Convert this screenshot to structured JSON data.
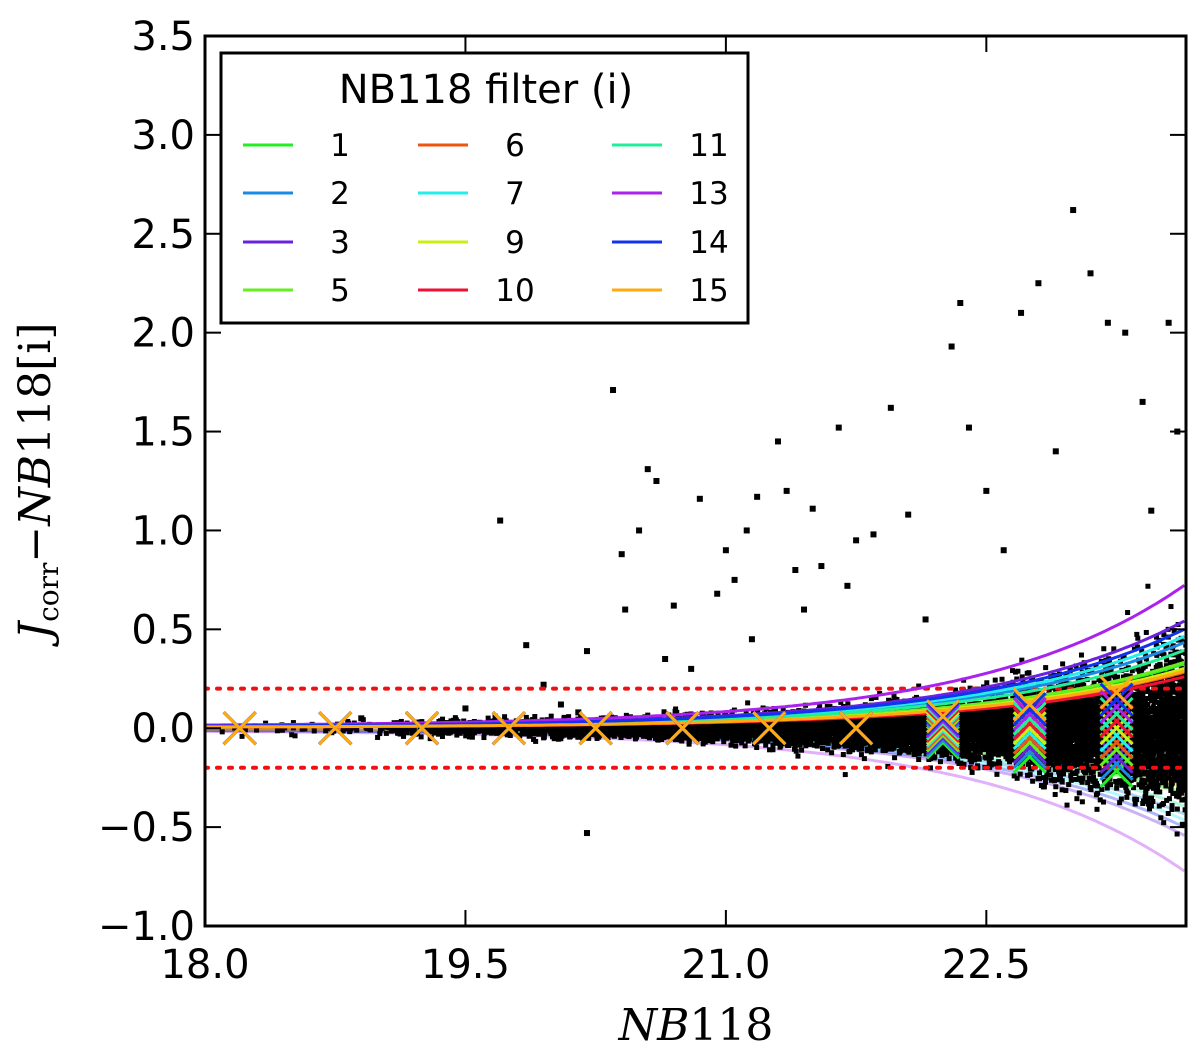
{
  "chart_data": {
    "type": "scatter",
    "xlabel": "NB118",
    "ylabel": "J_corr − NB118[i]",
    "ylabel_parts": {
      "J": "J",
      "sub": "corr",
      "dash": "−",
      "nb": "NB",
      "num": "118[i]"
    },
    "xlabel_parts": {
      "nb": "NB",
      "num": "118"
    },
    "xlim": [
      18.0,
      23.65
    ],
    "ylim": [
      -1.0,
      3.5
    ],
    "xticks": [
      18.0,
      19.5,
      21.0,
      22.5
    ],
    "xtick_labels": [
      "18.0",
      "19.5",
      "21.0",
      "22.5"
    ],
    "yticks": [
      -1.0,
      -0.5,
      0.0,
      0.5,
      1.0,
      1.5,
      2.0,
      2.5,
      3.0,
      3.5
    ],
    "ytick_labels": [
      "−1.0",
      "−0.5",
      "0.0",
      "0.5",
      "1.0",
      "1.5",
      "2.0",
      "2.5",
      "3.0",
      "3.5"
    ],
    "threshold_lines": [
      0.2,
      -0.2
    ],
    "threshold_color": "#ee1111",
    "legend": {
      "title": "NB118 filter (i)",
      "position": "top-left",
      "entries": [
        {
          "label": "1",
          "color": "#22ee22"
        },
        {
          "label": "2",
          "color": "#1a8ae6"
        },
        {
          "label": "3",
          "color": "#6a22e0"
        },
        {
          "label": "5",
          "color": "#66ee22"
        },
        {
          "label": "6",
          "color": "#ee5511"
        },
        {
          "label": "7",
          "color": "#22eeee"
        },
        {
          "label": "9",
          "color": "#ccee11"
        },
        {
          "label": "10",
          "color": "#ee1133"
        },
        {
          "label": "11",
          "color": "#22ee99"
        },
        {
          "label": "13",
          "color": "#aa22ee"
        },
        {
          "label": "14",
          "color": "#1133ee"
        },
        {
          "label": "15",
          "color": "#ffaa11"
        }
      ]
    },
    "series": [
      {
        "name": "1",
        "color": "#22ee22",
        "sigma_scale": 0.8
      },
      {
        "name": "2",
        "color": "#1a8ae6",
        "sigma_scale": 0.6
      },
      {
        "name": "3",
        "color": "#6a22e0",
        "sigma_scale": 0.48
      },
      {
        "name": "5",
        "color": "#66ee22",
        "sigma_scale": 0.78
      },
      {
        "name": "6",
        "color": "#ee5511",
        "sigma_scale": 0.92
      },
      {
        "name": "7",
        "color": "#22eeee",
        "sigma_scale": 0.56
      },
      {
        "name": "9",
        "color": "#ccee11",
        "sigma_scale": 0.86
      },
      {
        "name": "10",
        "color": "#ee1133",
        "sigma_scale": 1.0
      },
      {
        "name": "11",
        "color": "#22ee99",
        "sigma_scale": 0.66
      },
      {
        "name": "13",
        "color": "#aa22ee",
        "sigma_scale": 0.36
      },
      {
        "name": "14",
        "color": "#1133ee",
        "sigma_scale": 0.52
      },
      {
        "name": "15",
        "color": "#ffaa11",
        "sigma_scale": 0.9
      }
    ],
    "median_markers_x": [
      18.2,
      18.75,
      19.25,
      19.75,
      20.25,
      20.75,
      21.25,
      21.75,
      22.25,
      22.75,
      23.25
    ],
    "median_marker_offsets": [
      0.0,
      0.0,
      0.0,
      0.0,
      0.0,
      0.0,
      0.0,
      0.0,
      0.0,
      0.0,
      0.0
    ],
    "scatter_points": [
      [
        19.7,
        1.05
      ],
      [
        19.85,
        0.42
      ],
      [
        19.95,
        0.22
      ],
      [
        20.05,
        0.12
      ],
      [
        20.15,
        0.08
      ],
      [
        20.2,
        0.39
      ],
      [
        20.2,
        -0.53
      ],
      [
        20.35,
        1.71
      ],
      [
        20.4,
        0.88
      ],
      [
        20.42,
        0.6
      ],
      [
        20.5,
        1.0
      ],
      [
        20.55,
        1.31
      ],
      [
        20.6,
        1.25
      ],
      [
        20.65,
        0.35
      ],
      [
        20.7,
        0.62
      ],
      [
        20.8,
        0.3
      ],
      [
        20.85,
        1.16
      ],
      [
        20.95,
        0.68
      ],
      [
        21.0,
        0.9
      ],
      [
        21.05,
        0.75
      ],
      [
        21.12,
        1.0
      ],
      [
        21.15,
        0.45
      ],
      [
        21.18,
        1.17
      ],
      [
        21.3,
        1.45
      ],
      [
        21.35,
        1.2
      ],
      [
        21.4,
        0.8
      ],
      [
        21.45,
        0.6
      ],
      [
        21.5,
        1.11
      ],
      [
        21.55,
        0.82
      ],
      [
        21.65,
        1.52
      ],
      [
        21.7,
        0.72
      ],
      [
        21.75,
        0.95
      ],
      [
        21.85,
        0.98
      ],
      [
        21.95,
        1.62
      ],
      [
        22.05,
        1.08
      ],
      [
        22.15,
        0.55
      ],
      [
        22.3,
        1.93
      ],
      [
        22.35,
        2.15
      ],
      [
        22.4,
        1.52
      ],
      [
        22.5,
        1.2
      ],
      [
        22.7,
        2.1
      ],
      [
        22.8,
        2.25
      ],
      [
        23.0,
        2.62
      ],
      [
        23.1,
        2.3
      ],
      [
        23.2,
        2.05
      ],
      [
        23.3,
        2.0
      ],
      [
        23.4,
        1.65
      ],
      [
        23.55,
        2.05
      ],
      [
        22.6,
        0.9
      ],
      [
        22.9,
        1.4
      ],
      [
        23.45,
        1.1
      ],
      [
        23.6,
        1.5
      ],
      [
        20.3,
        0.05
      ],
      [
        19.5,
        0.1
      ],
      [
        18.9,
        0.05
      ],
      [
        19.3,
        -0.05
      ]
    ]
  }
}
